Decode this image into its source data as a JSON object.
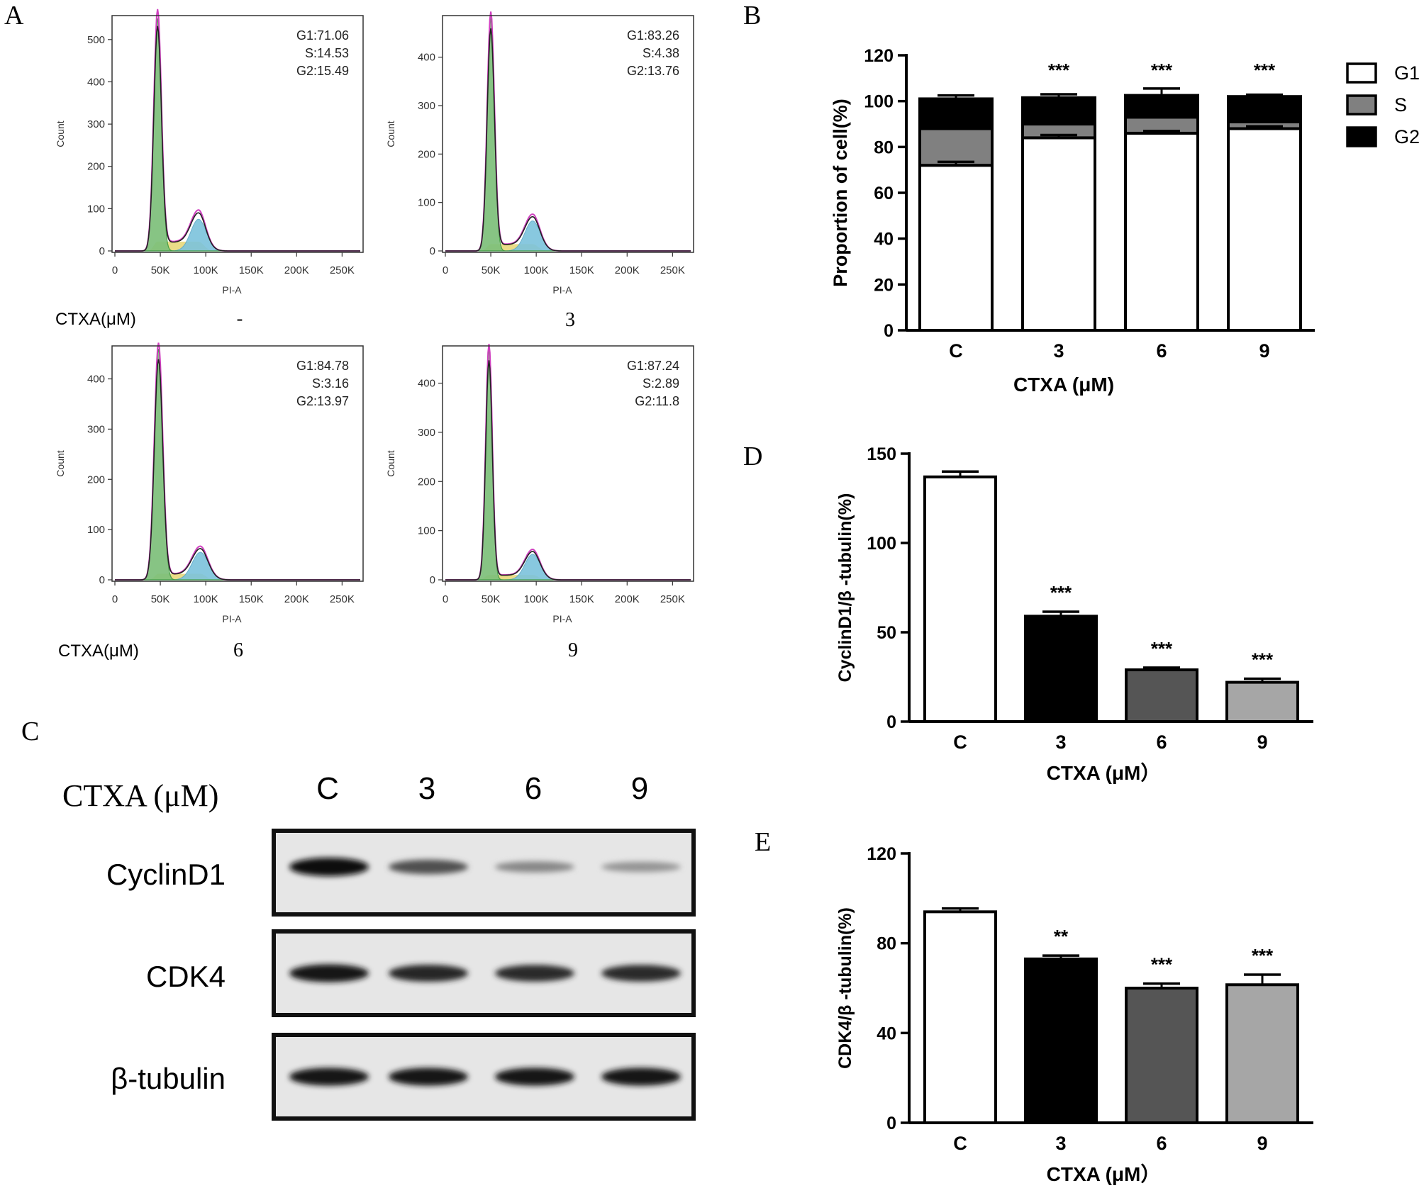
{
  "panel_letters": {
    "A": "A",
    "B": "B",
    "C": "C",
    "D": "D",
    "E": "E"
  },
  "flow": {
    "x_ticks": [
      "0",
      "50K",
      "100K",
      "150K",
      "200K",
      "250K"
    ],
    "xlabel": "PI-A",
    "ylabel": "Count",
    "ctxa_label": "CTXA(μM)",
    "panels": [
      {
        "id": "ctrl",
        "condition": "-",
        "yticks": [
          "0",
          "100",
          "200",
          "300",
          "400",
          "500"
        ],
        "ymax": 550,
        "lines": [
          "G1:71.06",
          "S:14.53",
          "G2:15.49"
        ],
        "g1": {
          "center_k": 47,
          "width_k": 4.2,
          "peak": 550
        },
        "g2": {
          "center_k": 92,
          "width_k": 8.5,
          "peak": 75
        },
        "s_level": 22
      },
      {
        "id": "c3",
        "condition": "3",
        "yticks": [
          "0",
          "100",
          "200",
          "300",
          "400"
        ],
        "ymax": 480,
        "lines": [
          "G1:83.26",
          "S:4.38",
          "G2:13.76"
        ],
        "g1": {
          "center_k": 50,
          "width_k": 4.0,
          "peak": 480
        },
        "g2": {
          "center_k": 96,
          "width_k": 8.5,
          "peak": 62
        },
        "s_level": 14
      },
      {
        "id": "c6",
        "condition": "6",
        "yticks": [
          "0",
          "100",
          "200",
          "300",
          "400"
        ],
        "ymax": 460,
        "lines": [
          "G1:84.78",
          "S:3.16",
          "G2:13.97"
        ],
        "g1": {
          "center_k": 48,
          "width_k": 4.6,
          "peak": 460
        },
        "g2": {
          "center_k": 94,
          "width_k": 9.0,
          "peak": 55
        },
        "s_level": 12
      },
      {
        "id": "c9",
        "condition": "9",
        "yticks": [
          "0",
          "100",
          "200",
          "300",
          "400"
        ],
        "ymax": 470,
        "lines": [
          "G1:87.24",
          "S:2.89",
          "G2:11.8"
        ],
        "g1": {
          "center_k": 48,
          "width_k": 3.6,
          "peak": 470
        },
        "g2": {
          "center_k": 96,
          "width_k": 8.5,
          "peak": 52
        },
        "s_level": 10
      }
    ]
  },
  "chart_data": [
    {
      "type": "bar",
      "stacked": true,
      "panel": "B",
      "categories": [
        "C",
        "3",
        "6",
        "9"
      ],
      "series": [
        {
          "name": "G1",
          "values": [
            72,
            84,
            86,
            88
          ],
          "err": [
            1.5,
            1.2,
            1.0,
            1.0
          ],
          "color": "#ffffff"
        },
        {
          "name": "S",
          "values": [
            16,
            6,
            7,
            3
          ],
          "err": [
            1.5,
            1.0,
            2.5,
            0.8
          ],
          "color": "#808080"
        },
        {
          "name": "G2",
          "values": [
            13,
            11.5,
            9.5,
            11
          ],
          "err": [
            1.5,
            1.5,
            3.0,
            0.8
          ],
          "color": "#000000"
        }
      ],
      "significance": [
        "",
        "***",
        "***",
        "***"
      ],
      "xlabel": "CTXA (μM)",
      "ylabel": "Proportion of cell(%)",
      "ylim": [
        0,
        120
      ],
      "yticks": [
        0,
        20,
        40,
        60,
        80,
        100,
        120
      ],
      "legend": "right"
    },
    {
      "type": "bar",
      "panel": "D",
      "categories": [
        "C",
        "3",
        "6",
        "9"
      ],
      "values": [
        137,
        59,
        29,
        22
      ],
      "err": [
        3,
        2.5,
        1.2,
        2.0
      ],
      "colors": [
        "#ffffff",
        "#000000",
        "#555555",
        "#a6a6a6"
      ],
      "significance": [
        "",
        "***",
        "***",
        "***"
      ],
      "xlabel": "CTXA (μM）",
      "ylabel": "CyclinD1/β -tubulin(%)",
      "ylim": [
        0,
        150
      ],
      "yticks": [
        0,
        50,
        100,
        150
      ]
    },
    {
      "type": "bar",
      "panel": "E",
      "categories": [
        "C",
        "3",
        "6",
        "9"
      ],
      "values": [
        94,
        73,
        60,
        61.5
      ],
      "err": [
        1.5,
        1.5,
        2.0,
        4.5
      ],
      "colors": [
        "#ffffff",
        "#000000",
        "#555555",
        "#a6a6a6"
      ],
      "significance": [
        "",
        "**",
        "***",
        "***"
      ],
      "xlabel": "CTXA (μM）",
      "ylabel": "CDK4/β -tubulin(%)",
      "ylim": [
        0,
        120
      ],
      "yticks": [
        0,
        40,
        80,
        120
      ]
    }
  ],
  "blot": {
    "header_label": "CTXA (μM)",
    "lanes": [
      "C",
      "3",
      "6",
      "9"
    ],
    "rows": [
      {
        "name": "CyclinD1",
        "intensity": [
          1.0,
          0.65,
          0.35,
          0.28
        ]
      },
      {
        "name": "CDK4",
        "intensity": [
          0.95,
          0.88,
          0.85,
          0.85
        ]
      },
      {
        "name": "β-tubulin",
        "intensity": [
          0.95,
          0.95,
          0.95,
          0.95
        ]
      }
    ]
  }
}
